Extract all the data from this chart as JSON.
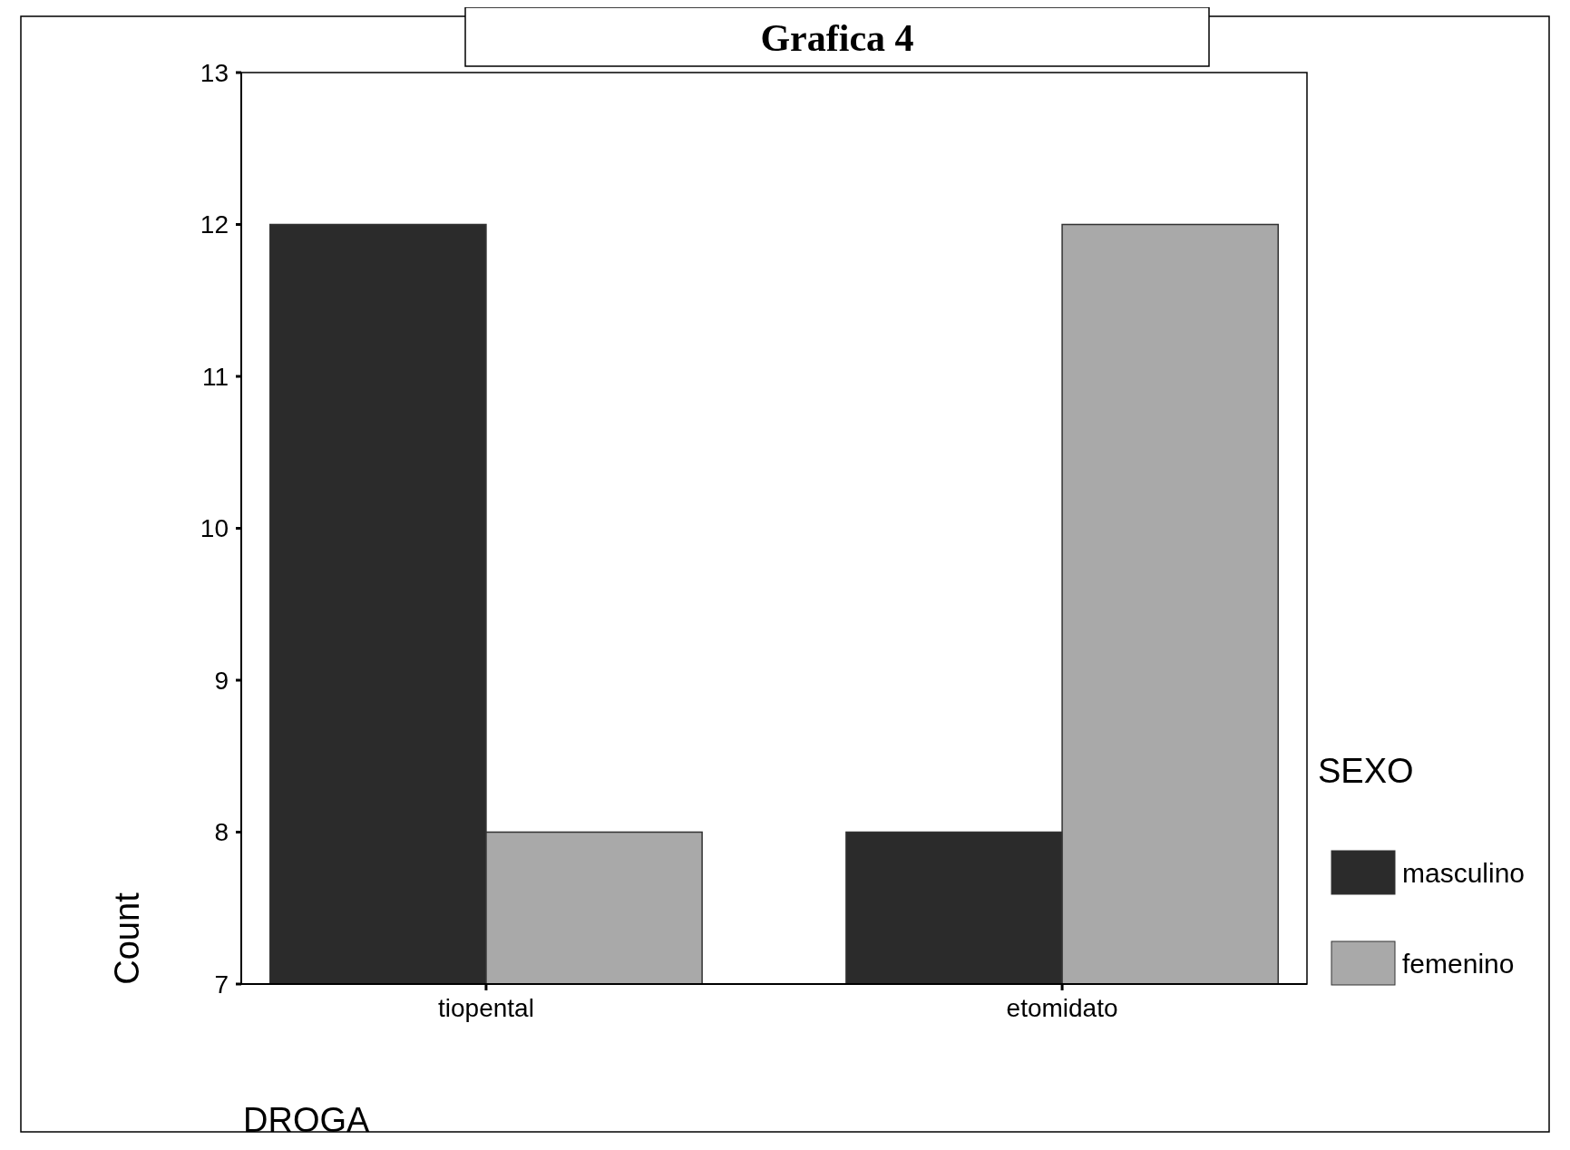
{
  "chart_data": {
    "type": "bar",
    "title": "Grafica 4",
    "xlabel": "DROGA",
    "ylabel": "Count",
    "legend_title": "SEXO",
    "legend": "right",
    "categories": [
      "tiopental",
      "etomidato"
    ],
    "series": [
      {
        "name": "masculino",
        "color": "#2b2b2b",
        "values": [
          12,
          8
        ]
      },
      {
        "name": "femenino",
        "color": "#a9a9a9",
        "values": [
          8,
          12
        ]
      }
    ],
    "ylim": [
      7,
      13
    ],
    "yticks": [
      7,
      8,
      9,
      10,
      11,
      12,
      13
    ],
    "grid": false
  }
}
